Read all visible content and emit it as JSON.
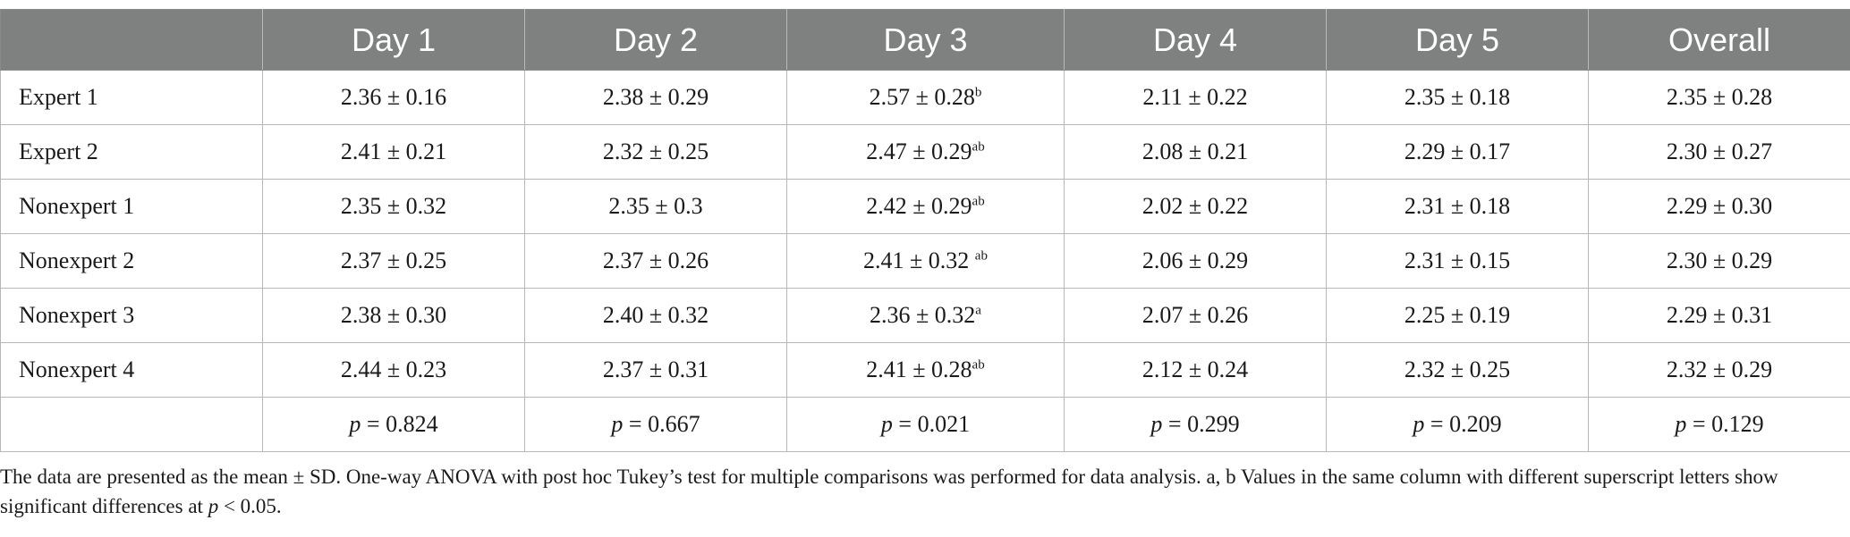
{
  "table": {
    "headers": [
      "",
      "Day 1",
      "Day 2",
      "Day 3",
      "Day 4",
      "Day 5",
      "Overall"
    ],
    "rows": [
      {
        "label": "Expert 1",
        "cells": [
          {
            "value": "2.36 ± 0.16",
            "sup": ""
          },
          {
            "value": "2.38 ± 0.29",
            "sup": ""
          },
          {
            "value": "2.57 ± 0.28",
            "sup": "b"
          },
          {
            "value": "2.11 ± 0.22",
            "sup": ""
          },
          {
            "value": "2.35 ± 0.18",
            "sup": ""
          },
          {
            "value": "2.35 ± 0.28",
            "sup": ""
          }
        ]
      },
      {
        "label": "Expert 2",
        "cells": [
          {
            "value": "2.41 ± 0.21",
            "sup": ""
          },
          {
            "value": "2.32 ± 0.25",
            "sup": ""
          },
          {
            "value": "2.47 ± 0.29",
            "sup": "ab"
          },
          {
            "value": "2.08 ± 0.21",
            "sup": ""
          },
          {
            "value": "2.29 ± 0.17",
            "sup": ""
          },
          {
            "value": "2.30 ± 0.27",
            "sup": ""
          }
        ]
      },
      {
        "label": "Nonexpert 1",
        "cells": [
          {
            "value": "2.35 ± 0.32",
            "sup": ""
          },
          {
            "value": "2.35 ± 0.3",
            "sup": ""
          },
          {
            "value": "2.42 ± 0.29",
            "sup": "ab"
          },
          {
            "value": "2.02 ± 0.22",
            "sup": ""
          },
          {
            "value": "2.31 ± 0.18",
            "sup": ""
          },
          {
            "value": "2.29 ± 0.30",
            "sup": ""
          }
        ]
      },
      {
        "label": "Nonexpert 2",
        "cells": [
          {
            "value": "2.37 ± 0.25",
            "sup": ""
          },
          {
            "value": "2.37 ± 0.26",
            "sup": ""
          },
          {
            "value": "2.41 ± 0.32 ",
            "sup": "ab"
          },
          {
            "value": "2.06 ± 0.29",
            "sup": ""
          },
          {
            "value": "2.31 ± 0.15",
            "sup": ""
          },
          {
            "value": "2.30 ± 0.29",
            "sup": ""
          }
        ]
      },
      {
        "label": "Nonexpert 3",
        "cells": [
          {
            "value": "2.38 ± 0.30",
            "sup": ""
          },
          {
            "value": "2.40 ± 0.32",
            "sup": ""
          },
          {
            "value": "2.36 ± 0.32",
            "sup": "a"
          },
          {
            "value": "2.07 ± 0.26",
            "sup": ""
          },
          {
            "value": "2.25 ± 0.19",
            "sup": ""
          },
          {
            "value": "2.29 ± 0.31",
            "sup": ""
          }
        ]
      },
      {
        "label": "Nonexpert 4",
        "cells": [
          {
            "value": "2.44 ± 0.23",
            "sup": ""
          },
          {
            "value": "2.37 ± 0.31",
            "sup": ""
          },
          {
            "value": "2.41 ± 0.28",
            "sup": "ab"
          },
          {
            "value": "2.12 ± 0.24",
            "sup": ""
          },
          {
            "value": "2.32 ± 0.25",
            "sup": ""
          },
          {
            "value": "2.32 ± 0.29",
            "sup": ""
          }
        ]
      }
    ],
    "p_row": {
      "label": "",
      "p_symbol": "p",
      "values": [
        "= 0.824",
        "= 0.667",
        "= 0.021",
        "= 0.299",
        "= 0.209",
        "= 0.129"
      ]
    }
  },
  "footnote": {
    "part1": "The data are presented as the mean ± SD. One-way ANOVA with post hoc Tukey’s test for multiple comparisons was performed for data analysis. a, b Values in the same column with different superscript letters show significant differences at ",
    "p_symbol": "p",
    "part2": " < 0.05."
  },
  "colors": {
    "header_bg": "#7f8180",
    "header_text": "#ffffff",
    "grid": "#b7b7b7",
    "body_text": "#1a1a1a"
  }
}
